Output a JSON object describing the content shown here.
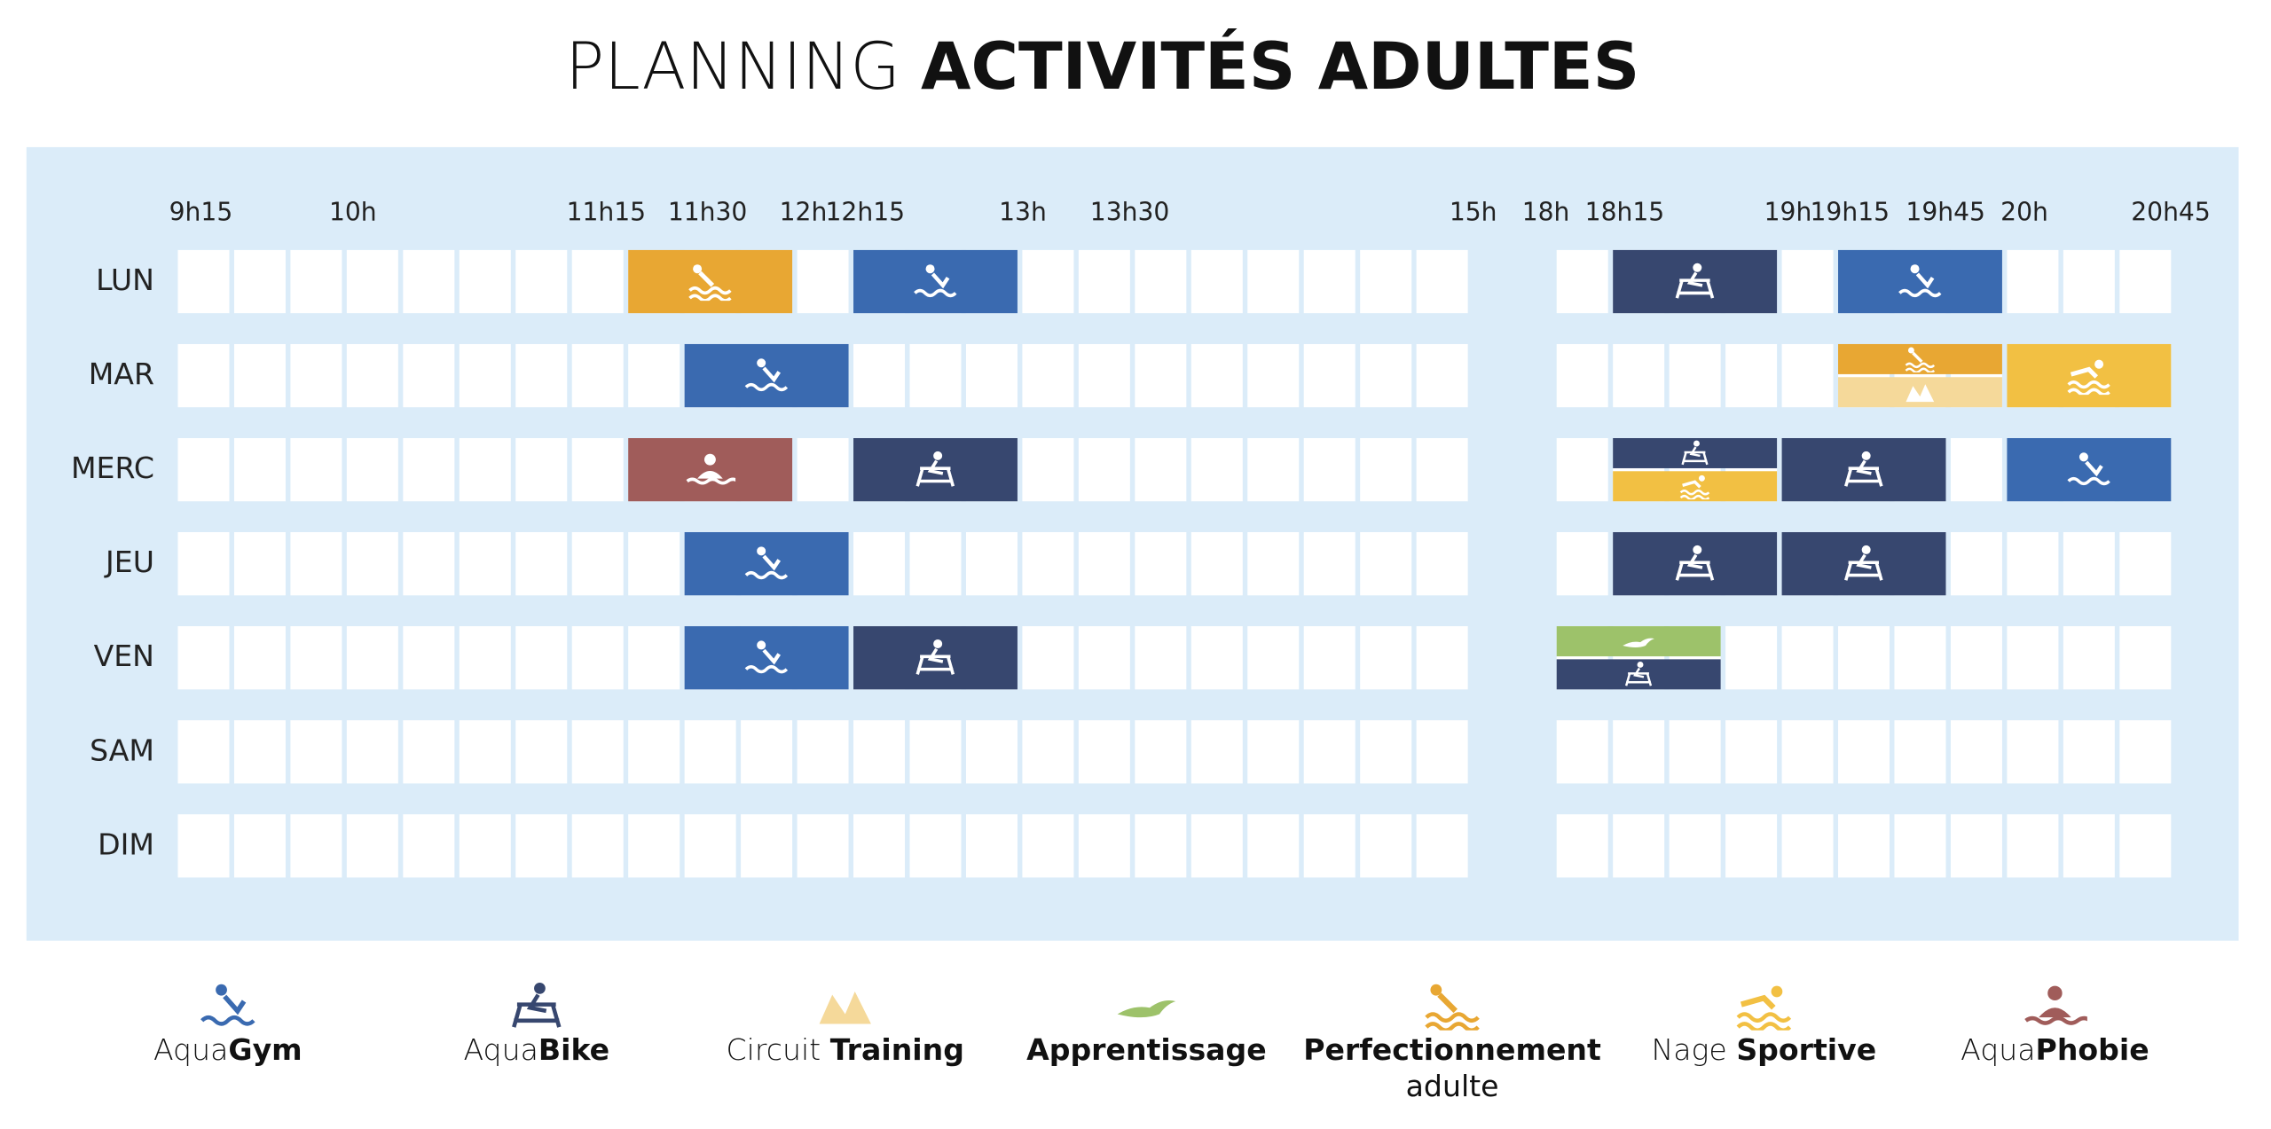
{
  "title": {
    "light": "PLANNING",
    "bold": "ACTIVITÉS ADULTES"
  },
  "times": [
    "9h15",
    "10h",
    "11h15",
    "11h30",
    "12h",
    "12h15",
    "13h",
    "13h30",
    "15h",
    "18h",
    "18h15",
    "19h",
    "19h15",
    "19h45",
    "20h",
    "20h45"
  ],
  "days": [
    "LUN",
    "MAR",
    "MERC",
    "JEU",
    "VEN",
    "SAM",
    "DIM"
  ],
  "legend": [
    {
      "light": "Aqua",
      "bold": "Gym",
      "color": "#3a6ab0"
    },
    {
      "light": "Aqua",
      "bold": "Bike",
      "color": "#37476f"
    },
    {
      "light": "Circuit ",
      "bold": "Training",
      "color": "#f5d99a"
    },
    {
      "bold": "Apprentissage",
      "color": "#9dc26a"
    },
    {
      "bold": "Perfectionnement",
      "second_line": "adulte",
      "color": "#e8a733"
    },
    {
      "light": "Nage ",
      "bold": "Sportive",
      "color": "#f2c043"
    },
    {
      "light": "Aqua",
      "bold": "Phobie",
      "color": "#a05c5a"
    }
  ]
}
